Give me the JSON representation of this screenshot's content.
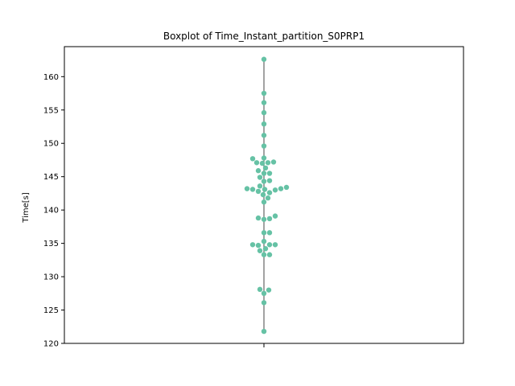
{
  "chart_data": {
    "type": "box",
    "title": "Boxplot of Time_Instant_partition_S0PRP1",
    "xlabel": "",
    "ylabel": "Time[s]",
    "ylim": [
      120,
      164.5
    ],
    "yticks": [
      120,
      125,
      130,
      135,
      140,
      145,
      150,
      155,
      160
    ],
    "grid": false,
    "legend": "none",
    "whisker_min": 121.8,
    "whisker_max": 162.6,
    "point_color": "#66c2a5",
    "line_color": "#666666",
    "points": [
      121.8,
      126.1,
      127.5,
      128.0,
      128.1,
      133.3,
      133.3,
      133.9,
      134.2,
      134.7,
      134.8,
      134.8,
      134.8,
      135.3,
      136.6,
      136.6,
      138.6,
      138.7,
      138.8,
      139.1,
      141.2,
      141.8,
      142.3,
      142.6,
      142.8,
      143.0,
      143.1,
      143.1,
      143.2,
      143.2,
      143.4,
      143.6,
      144.3,
      144.4,
      144.9,
      145.5,
      145.5,
      145.9,
      146.3,
      147.0,
      147.1,
      147.1,
      147.2,
      147.7,
      147.8,
      149.6,
      151.2,
      152.9,
      154.6,
      156.1,
      157.5,
      162.6
    ]
  }
}
